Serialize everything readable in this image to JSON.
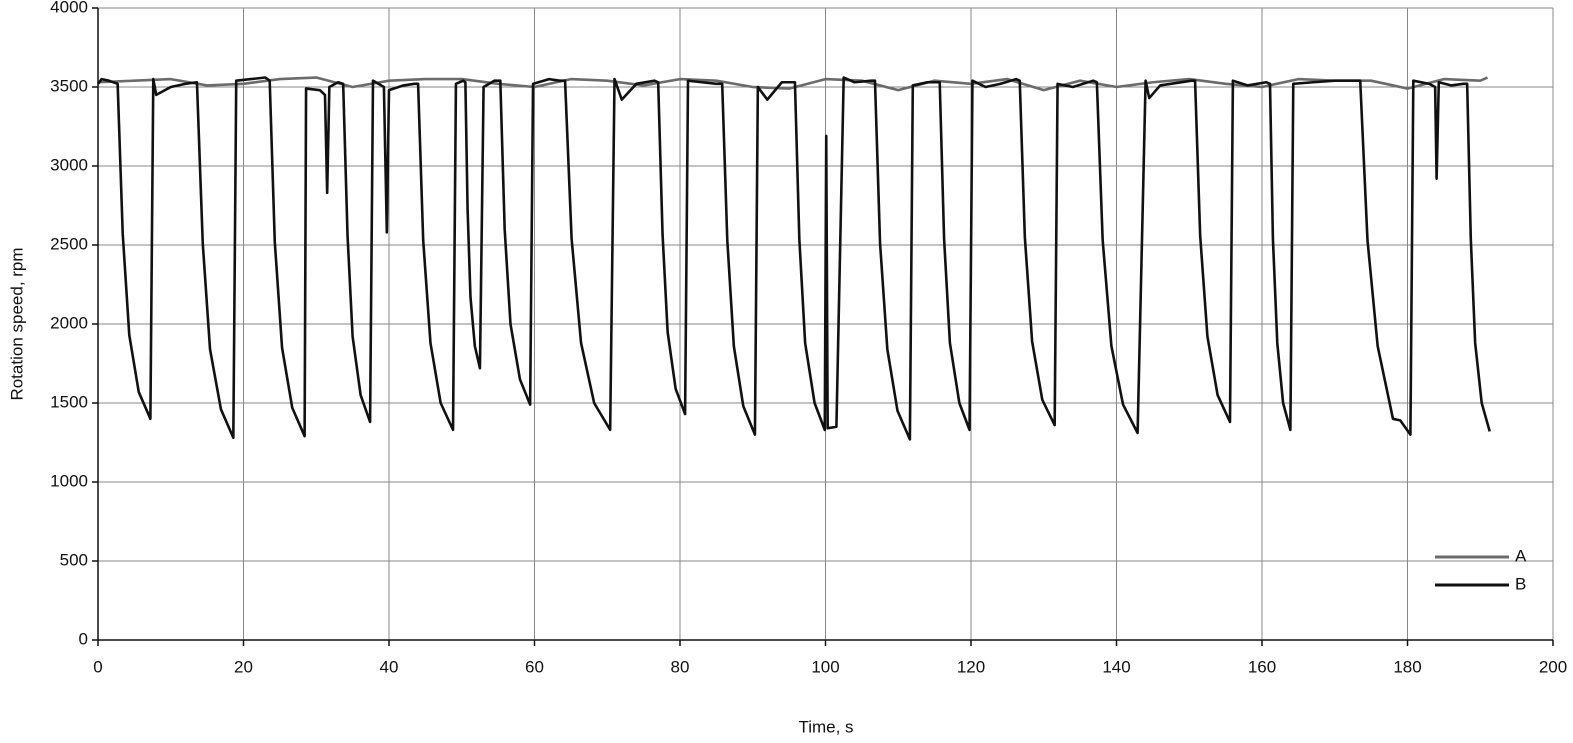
{
  "chart_data": {
    "type": "line",
    "xlabel": "Time, s",
    "ylabel": "Rotation speed, rpm",
    "xlim": [
      0,
      200
    ],
    "ylim": [
      0,
      4000
    ],
    "xticks": [
      0,
      20,
      40,
      60,
      80,
      100,
      120,
      140,
      160,
      180,
      200
    ],
    "yticks": [
      0,
      500,
      1000,
      1500,
      2000,
      2500,
      3000,
      3500,
      4000
    ],
    "grid": true,
    "legend": "lower right",
    "series": [
      {
        "name": "A",
        "color": "#6b6b6b",
        "x": [
          0,
          5,
          10,
          15,
          20,
          25,
          30,
          35,
          40,
          45,
          50,
          55,
          60,
          65,
          70,
          75,
          80,
          85,
          90,
          95,
          100,
          105,
          110,
          115,
          120,
          125,
          130,
          135,
          140,
          145,
          150,
          155,
          160,
          165,
          170,
          175,
          180,
          185,
          190,
          191
        ],
        "values": [
          3530,
          3540,
          3550,
          3510,
          3520,
          3550,
          3560,
          3500,
          3540,
          3550,
          3550,
          3520,
          3500,
          3550,
          3540,
          3510,
          3550,
          3540,
          3500,
          3490,
          3550,
          3540,
          3480,
          3540,
          3520,
          3550,
          3480,
          3540,
          3500,
          3530,
          3550,
          3520,
          3500,
          3550,
          3540,
          3540,
          3490,
          3550,
          3540,
          3560
        ]
      },
      {
        "name": "B",
        "color": "#111111",
        "x": [
          0,
          0.5,
          1.5,
          2.7,
          3.4,
          4.3,
          5.6,
          7.2,
          7.6,
          8,
          10,
          12,
          13.6,
          14.4,
          15.4,
          16.9,
          18.6,
          19,
          21,
          23,
          23.6,
          24.3,
          25.3,
          26.7,
          28.4,
          28.6,
          30.5,
          31.2,
          31.5,
          31.8,
          33,
          33.7,
          34.3,
          35,
          36.1,
          37.4,
          37.8,
          39.3,
          39.7,
          40,
          42,
          43.5,
          44,
          44.7,
          45.7,
          47.1,
          48.8,
          49.2,
          50.2,
          50.5,
          50.8,
          51.2,
          51.8,
          52.5,
          53,
          54.5,
          55.3,
          55.9,
          56.7,
          58,
          59.4,
          59.8,
          62,
          63.5,
          64.2,
          65.1,
          66.4,
          68.2,
          70.4,
          71,
          72,
          74,
          76.5,
          77,
          77.6,
          78.3,
          79.4,
          80.7,
          81.1,
          83,
          85,
          85.8,
          86.5,
          87.4,
          88.7,
          90.3,
          90.7,
          92,
          94,
          95.3,
          95.8,
          96.4,
          97.2,
          98.5,
          99.9,
          100.1,
          100.3,
          101.5,
          102.5,
          104,
          106.3,
          106.8,
          107.5,
          108.5,
          109.9,
          111.6,
          112,
          114,
          115.2,
          115.7,
          116.3,
          117.1,
          118.4,
          119.8,
          120.2,
          122,
          124,
          126.2,
          126.7,
          127.4,
          128.4,
          129.8,
          131.5,
          131.9,
          134,
          136.8,
          137.3,
          138.1,
          139.3,
          140.9,
          142.9,
          144,
          144.5,
          146,
          150.3,
          150.8,
          151.5,
          152.5,
          153.9,
          155.6,
          156,
          158,
          160.6,
          161.1,
          161.5,
          162.1,
          162.9,
          163.9,
          164.3,
          167,
          170,
          173,
          173.5,
          174.5,
          175.9,
          178,
          179,
          180.4,
          180.8,
          183,
          183.8,
          184,
          184.3,
          186,
          187.7,
          188.2,
          188.7,
          189.3,
          190.2,
          191.3
        ],
        "values": [
          3520,
          3550,
          3540,
          3520,
          2570,
          1930,
          1570,
          1400,
          3550,
          3450,
          3500,
          3520,
          3530,
          2510,
          1840,
          1460,
          1280,
          3540,
          3550,
          3560,
          3540,
          2520,
          1850,
          1470,
          1290,
          3490,
          3480,
          3450,
          2830,
          3500,
          3530,
          3520,
          2560,
          1920,
          1550,
          1380,
          3540,
          3500,
          2580,
          3480,
          3510,
          3520,
          3520,
          2530,
          1880,
          1500,
          1330,
          3520,
          3540,
          3530,
          2730,
          2170,
          1860,
          1720,
          3500,
          3540,
          3540,
          2600,
          2000,
          1650,
          1490,
          3520,
          3550,
          3540,
          3540,
          2540,
          1880,
          1500,
          1330,
          3550,
          3420,
          3520,
          3540,
          3530,
          2570,
          1950,
          1590,
          1430,
          3540,
          3530,
          3520,
          3520,
          2530,
          1860,
          1480,
          1300,
          3500,
          3420,
          3530,
          3530,
          3530,
          2540,
          1880,
          1500,
          1330,
          3190,
          1340,
          1350,
          3560,
          3530,
          3540,
          3540,
          2510,
          1840,
          1450,
          1270,
          3510,
          3530,
          3530,
          3530,
          2540,
          1880,
          1500,
          1330,
          3540,
          3500,
          3520,
          3550,
          3540,
          2550,
          1890,
          1520,
          1360,
          3520,
          3500,
          3540,
          3530,
          2530,
          1860,
          1490,
          1310,
          3540,
          3430,
          3510,
          3540,
          3540,
          2560,
          1920,
          1550,
          1380,
          3540,
          3510,
          3530,
          3520,
          2540,
          1880,
          1500,
          1330,
          3520,
          3530,
          3540,
          3540,
          3540,
          2530,
          1860,
          1400,
          1390,
          1300,
          3540,
          3520,
          3500,
          2920,
          3530,
          3510,
          3520,
          3520,
          2540,
          1880,
          1500,
          1320
        ]
      }
    ]
  }
}
